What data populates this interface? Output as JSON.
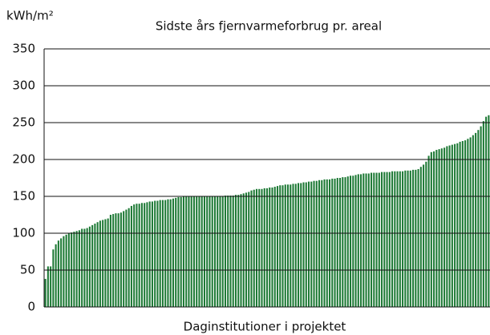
{
  "chart_data": {
    "type": "bar",
    "title": "Sidste års fjernvarmeforbrug pr. areal",
    "y_label": "kWh/m²",
    "x_label": "Daginstitutioner i projektet",
    "color": "#1e7a36",
    "grid": true,
    "ylim": [
      0,
      350
    ],
    "yticks": [
      0,
      50,
      100,
      150,
      200,
      250,
      300,
      350
    ],
    "categories": [
      null,
      null,
      null,
      null,
      null,
      null,
      null,
      null,
      null,
      null,
      null,
      null,
      null,
      null,
      null,
      null,
      null,
      null,
      null,
      null,
      null,
      null,
      null,
      null,
      null,
      null,
      null,
      null,
      null,
      null,
      null,
      null,
      null,
      null,
      null,
      null,
      null,
      null,
      null,
      null,
      null,
      null,
      null,
      null,
      null,
      null,
      null,
      null,
      null,
      null,
      null,
      null,
      null,
      null,
      null,
      null,
      null,
      null,
      null,
      null,
      null,
      null,
      null,
      null,
      null,
      null,
      null,
      null,
      null,
      null,
      null,
      null,
      null,
      null,
      null,
      null,
      null,
      null,
      null,
      null,
      null,
      null,
      null,
      null,
      null,
      null,
      null,
      null,
      null,
      null,
      null,
      null,
      null,
      null,
      null,
      null,
      null,
      null,
      null,
      null,
      null,
      null,
      null,
      null,
      null,
      null,
      null,
      null,
      null,
      null,
      null,
      null,
      null,
      null,
      null,
      null,
      null,
      null,
      null,
      null,
      null,
      null,
      null,
      null,
      null,
      null,
      null,
      null,
      null,
      null,
      null,
      null,
      null,
      null,
      null,
      null,
      null,
      null,
      null,
      null,
      null,
      null,
      null,
      null,
      null,
      null,
      null,
      null,
      null,
      null,
      null,
      null,
      null,
      null,
      null,
      null,
      null,
      null,
      null,
      null,
      null,
      null,
      null,
      null,
      null,
      null,
      null,
      null,
      null,
      null,
      null
    ],
    "values": [
      38,
      55,
      55,
      78,
      85,
      90,
      93,
      96,
      98,
      100,
      101,
      102,
      103,
      104,
      106,
      106,
      107,
      109,
      111,
      113,
      115,
      117,
      118,
      119,
      120,
      125,
      126,
      127,
      127,
      128,
      130,
      132,
      134,
      137,
      139,
      140,
      140,
      141,
      141,
      142,
      143,
      143,
      144,
      144,
      145,
      145,
      145,
      146,
      146,
      147,
      148,
      149,
      149,
      150,
      150,
      150,
      150,
      150,
      150,
      150,
      150,
      150,
      150,
      150,
      150,
      150,
      150,
      150,
      150,
      151,
      151,
      151,
      151,
      152,
      152,
      153,
      154,
      155,
      156,
      158,
      159,
      160,
      160,
      160,
      161,
      161,
      162,
      162,
      163,
      164,
      165,
      165,
      166,
      166,
      166,
      167,
      167,
      168,
      168,
      169,
      169,
      170,
      170,
      171,
      171,
      172,
      172,
      173,
      173,
      173,
      174,
      174,
      175,
      175,
      176,
      176,
      177,
      178,
      178,
      179,
      180,
      180,
      181,
      181,
      181,
      182,
      182,
      182,
      182,
      183,
      183,
      183,
      183,
      184,
      184,
      184,
      184,
      184,
      185,
      185,
      185,
      186,
      186,
      187,
      190,
      193,
      197,
      205,
      210,
      211,
      213,
      214,
      215,
      216,
      218,
      219,
      220,
      221,
      222,
      224,
      225,
      226,
      228,
      230,
      233,
      236,
      240,
      245,
      252,
      258,
      260
    ]
  }
}
